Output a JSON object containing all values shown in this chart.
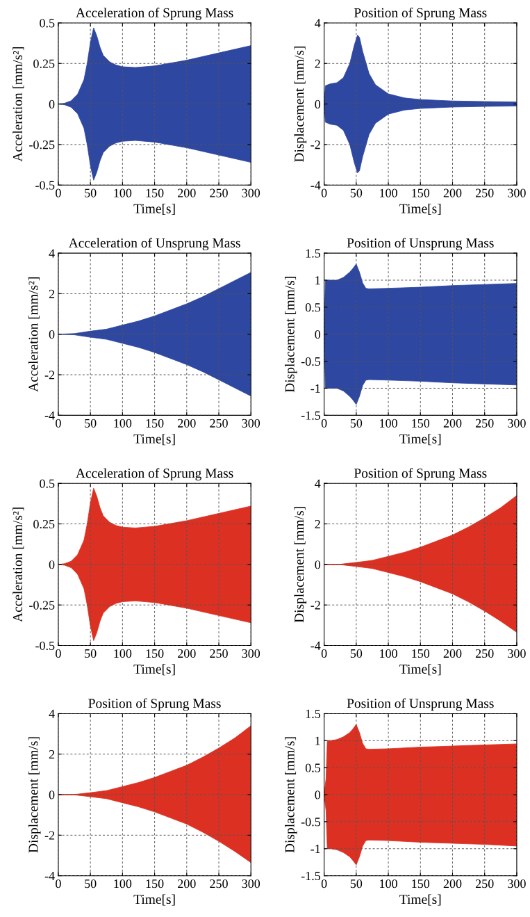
{
  "chart_data": [
    {
      "type": "area",
      "title": "Acceleration of Sprung Mass",
      "xlabel": "Time[s]",
      "ylabel": "Acceleration [mm/s²]",
      "xlim": [
        0,
        300
      ],
      "xticks": [
        0,
        50,
        100,
        150,
        200,
        250,
        300
      ],
      "ylim": [
        -0.5,
        0.5
      ],
      "yticks": [
        -0.5,
        -0.25,
        0,
        0.25,
        0.5
      ],
      "grid": true,
      "x": [
        0,
        10,
        20,
        30,
        40,
        45,
        50,
        55,
        60,
        65,
        70,
        80,
        90,
        100,
        120,
        150,
        200,
        250,
        300
      ],
      "series": [
        {
          "color": "#2e47a0",
          "values": [
            0,
            0.005,
            0.02,
            0.06,
            0.15,
            0.25,
            0.38,
            0.47,
            0.42,
            0.35,
            0.3,
            0.26,
            0.24,
            0.23,
            0.225,
            0.235,
            0.27,
            0.315,
            0.36
          ]
        },
        {
          "color": "#2e47a0",
          "values": [
            0,
            -0.005,
            -0.02,
            -0.06,
            -0.15,
            -0.25,
            -0.38,
            -0.47,
            -0.42,
            -0.35,
            -0.3,
            -0.26,
            -0.24,
            -0.23,
            -0.225,
            -0.235,
            -0.27,
            -0.315,
            -0.36
          ]
        }
      ]
    },
    {
      "type": "area",
      "title": "Position of Sprung Mass",
      "xlabel": "Time[s]",
      "ylabel": "Displacement [mm/s]",
      "xlim": [
        0,
        300
      ],
      "xticks": [
        0,
        50,
        100,
        150,
        200,
        250,
        300
      ],
      "ylim": [
        -4,
        4
      ],
      "yticks": [
        -4,
        -2,
        0,
        2,
        4
      ],
      "grid": true,
      "x": [
        0,
        2,
        10,
        20,
        30,
        40,
        47,
        52,
        55,
        60,
        70,
        80,
        100,
        125,
        150,
        200,
        250,
        300
      ],
      "series": [
        {
          "color": "#2e47a0",
          "values": [
            0,
            0.9,
            1.0,
            1.05,
            1.3,
            2.0,
            2.9,
            3.4,
            3.3,
            2.6,
            1.5,
            0.95,
            0.5,
            0.3,
            0.22,
            0.15,
            0.12,
            0.1
          ]
        },
        {
          "color": "#2e47a0",
          "values": [
            0,
            -0.9,
            -1.0,
            -1.05,
            -1.3,
            -2.0,
            -2.9,
            -3.4,
            -3.3,
            -2.6,
            -1.5,
            -0.95,
            -0.5,
            -0.3,
            -0.22,
            -0.15,
            -0.12,
            -0.1
          ]
        }
      ]
    },
    {
      "type": "area",
      "title": "Acceleration of Unsprung Mass",
      "xlabel": "Time[s]",
      "ylabel": "Acceleration [mm/s²]",
      "xlim": [
        0,
        300
      ],
      "xticks": [
        0,
        50,
        100,
        150,
        200,
        250,
        300
      ],
      "ylim": [
        -4,
        4
      ],
      "yticks": [
        -4,
        -2,
        0,
        2,
        4
      ],
      "grid": true,
      "x": [
        0,
        25,
        50,
        75,
        100,
        125,
        150,
        175,
        200,
        225,
        250,
        275,
        300
      ],
      "series": [
        {
          "color": "#2e47a0",
          "values": [
            0,
            0.03,
            0.15,
            0.25,
            0.45,
            0.65,
            0.9,
            1.2,
            1.5,
            1.85,
            2.25,
            2.65,
            3.05
          ]
        },
        {
          "color": "#2e47a0",
          "values": [
            0,
            -0.03,
            -0.15,
            -0.25,
            -0.45,
            -0.65,
            -0.9,
            -1.2,
            -1.5,
            -1.85,
            -2.25,
            -2.65,
            -3.05
          ]
        }
      ]
    },
    {
      "type": "area",
      "title": "Position of Unsprung Mass",
      "xlabel": "Time[s]",
      "ylabel": "Displacement [mm/s]",
      "xlim": [
        0,
        300
      ],
      "xticks": [
        0,
        50,
        100,
        150,
        200,
        250,
        300
      ],
      "ylim": [
        -1.5,
        1.5
      ],
      "yticks": [
        -1.5,
        -1,
        -0.5,
        0,
        0.5,
        1,
        1.5
      ],
      "grid": true,
      "x": [
        0,
        2,
        10,
        20,
        30,
        40,
        45,
        50,
        55,
        60,
        65,
        70,
        100,
        150,
        200,
        250,
        300
      ],
      "series": [
        {
          "color": "#2e47a0",
          "values": [
            0,
            1.0,
            1.0,
            1.0,
            1.05,
            1.15,
            1.22,
            1.3,
            1.15,
            0.95,
            0.85,
            0.84,
            0.85,
            0.87,
            0.9,
            0.92,
            0.94
          ]
        },
        {
          "color": "#2e47a0",
          "values": [
            0,
            -1.0,
            -1.0,
            -1.0,
            -1.05,
            -1.15,
            -1.22,
            -1.3,
            -1.15,
            -0.95,
            -0.85,
            -0.84,
            -0.85,
            -0.87,
            -0.9,
            -0.92,
            -0.94
          ]
        }
      ]
    },
    {
      "type": "area",
      "title": "Acceleration of Sprung Mass",
      "xlabel": "Time[s]",
      "ylabel": "Acceleration [mm/s²]",
      "xlim": [
        0,
        300
      ],
      "xticks": [
        0,
        50,
        100,
        150,
        200,
        250,
        300
      ],
      "ylim": [
        -0.5,
        0.5
      ],
      "yticks": [
        -0.5,
        -0.25,
        0,
        0.25,
        0.5
      ],
      "grid": true,
      "x": [
        0,
        10,
        20,
        30,
        40,
        45,
        50,
        55,
        60,
        65,
        70,
        80,
        90,
        100,
        120,
        150,
        200,
        250,
        300
      ],
      "series": [
        {
          "color": "#dc3122",
          "values": [
            0,
            0.005,
            0.02,
            0.06,
            0.15,
            0.25,
            0.38,
            0.47,
            0.42,
            0.35,
            0.3,
            0.26,
            0.24,
            0.23,
            0.225,
            0.235,
            0.27,
            0.315,
            0.36
          ]
        },
        {
          "color": "#dc3122",
          "values": [
            0,
            -0.005,
            -0.02,
            -0.06,
            -0.15,
            -0.25,
            -0.38,
            -0.47,
            -0.42,
            -0.35,
            -0.3,
            -0.26,
            -0.24,
            -0.23,
            -0.225,
            -0.235,
            -0.27,
            -0.315,
            -0.36
          ]
        }
      ]
    },
    {
      "type": "area",
      "title": "Position of Sprung Mass",
      "xlabel": "Time[s]",
      "ylabel": "Displacement [mm/s]",
      "xlim": [
        0,
        300
      ],
      "xticks": [
        0,
        50,
        100,
        150,
        200,
        250,
        300
      ],
      "ylim": [
        -4,
        4
      ],
      "yticks": [
        -4,
        -2,
        0,
        2,
        4
      ],
      "grid": true,
      "x": [
        0,
        25,
        50,
        75,
        100,
        125,
        150,
        175,
        200,
        225,
        250,
        275,
        300
      ],
      "series": [
        {
          "color": "#dc3122",
          "values": [
            0,
            0.01,
            0.1,
            0.2,
            0.4,
            0.6,
            0.85,
            1.15,
            1.45,
            1.85,
            2.3,
            2.8,
            3.4
          ]
        },
        {
          "color": "#dc3122",
          "values": [
            0,
            -0.01,
            -0.1,
            -0.2,
            -0.4,
            -0.6,
            -0.85,
            -1.15,
            -1.45,
            -1.85,
            -2.3,
            -2.8,
            -3.35
          ]
        }
      ]
    },
    {
      "type": "area",
      "title": "Position of Sprung Mass",
      "xlabel": "Time[s]",
      "ylabel": "Displacement [mm/s]",
      "xlim": [
        0,
        300
      ],
      "xticks": [
        0,
        50,
        100,
        150,
        200,
        250,
        300
      ],
      "ylim": [
        -4,
        4
      ],
      "yticks": [
        -4,
        -2,
        0,
        2,
        4
      ],
      "grid": true,
      "x": [
        0,
        25,
        50,
        75,
        100,
        125,
        150,
        175,
        200,
        225,
        250,
        275,
        300
      ],
      "series": [
        {
          "color": "#dc3122",
          "values": [
            0,
            0.01,
            0.1,
            0.2,
            0.4,
            0.6,
            0.85,
            1.15,
            1.45,
            1.85,
            2.3,
            2.8,
            3.4
          ]
        },
        {
          "color": "#dc3122",
          "values": [
            0,
            -0.01,
            -0.1,
            -0.2,
            -0.4,
            -0.6,
            -0.85,
            -1.15,
            -1.45,
            -1.85,
            -2.3,
            -2.8,
            -3.35
          ]
        }
      ]
    },
    {
      "type": "area",
      "title": "Position of Unsprung Mass",
      "xlabel": "Time[s]",
      "ylabel": "Displacement [mm/s]",
      "xlim": [
        0,
        300
      ],
      "xticks": [
        0,
        50,
        100,
        150,
        200,
        250,
        300
      ],
      "ylim": [
        -1.5,
        1.5
      ],
      "yticks": [
        -1.5,
        -1,
        -0.5,
        0,
        0.5,
        1,
        1.5
      ],
      "grid": true,
      "x": [
        0,
        3,
        5,
        10,
        20,
        30,
        40,
        45,
        50,
        55,
        60,
        65,
        70,
        100,
        150,
        200,
        250,
        300
      ],
      "series": [
        {
          "color": "#dc3122",
          "values": [
            0,
            0.3,
            1.0,
            1.0,
            1.02,
            1.07,
            1.15,
            1.22,
            1.3,
            1.15,
            0.95,
            0.85,
            0.84,
            0.85,
            0.88,
            0.9,
            0.92,
            0.94
          ]
        },
        {
          "color": "#dc3122",
          "values": [
            0,
            -0.3,
            -1.0,
            -1.0,
            -1.02,
            -1.07,
            -1.15,
            -1.22,
            -1.3,
            -1.15,
            -0.95,
            -0.85,
            -0.84,
            -0.85,
            -0.88,
            -0.9,
            -0.92,
            -0.95
          ]
        }
      ]
    }
  ]
}
